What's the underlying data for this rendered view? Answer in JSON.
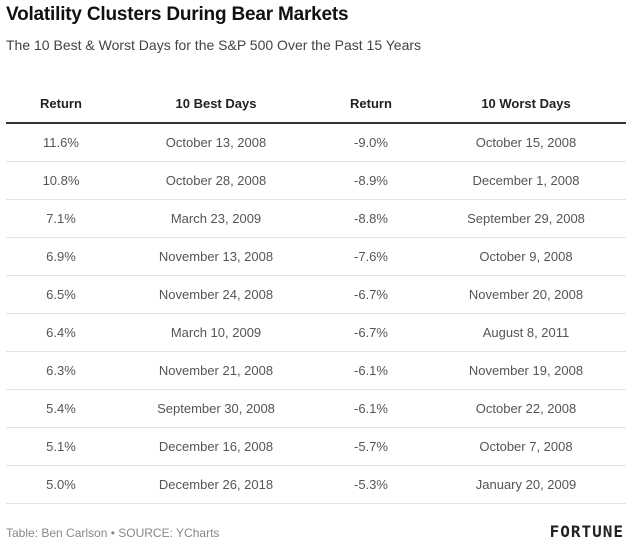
{
  "header": {
    "title": "Volatility Clusters During Bear Markets",
    "subtitle": "The 10 Best & Worst Days for the S&P 500 Over the Past 15 Years"
  },
  "footer": {
    "source": "Table: Ben Carlson • SOURCE: YCharts",
    "brand": "FORTUNE"
  },
  "chart_data": {
    "type": "table",
    "title": "Volatility Clusters During Bear Markets",
    "subtitle": "The 10 Best & Worst Days for the S&P 500 Over the Past 15 Years",
    "columns": [
      "Return",
      "10 Best Days",
      "Return",
      "10 Worst Days"
    ],
    "rows": [
      [
        "11.6%",
        "October 13, 2008",
        "-9.0%",
        "October 15, 2008"
      ],
      [
        "10.8%",
        "October 28, 2008",
        "-8.9%",
        "December 1, 2008"
      ],
      [
        "7.1%",
        "March 23, 2009",
        "-8.8%",
        "September 29, 2008"
      ],
      [
        "6.9%",
        "November 13, 2008",
        "-7.6%",
        "October 9, 2008"
      ],
      [
        "6.5%",
        "November 24, 2008",
        "-6.7%",
        "November 20, 2008"
      ],
      [
        "6.4%",
        "March 10, 2009",
        "-6.7%",
        "August 8, 2011"
      ],
      [
        "6.3%",
        "November 21, 2008",
        "-6.1%",
        "November 19, 2008"
      ],
      [
        "5.4%",
        "September 30, 2008",
        "-6.1%",
        "October 22, 2008"
      ],
      [
        "5.1%",
        "December 16, 2008",
        "-5.7%",
        "October 7, 2008"
      ],
      [
        "5.0%",
        "December 26, 2018",
        "-5.3%",
        "January 20, 2009"
      ]
    ]
  }
}
